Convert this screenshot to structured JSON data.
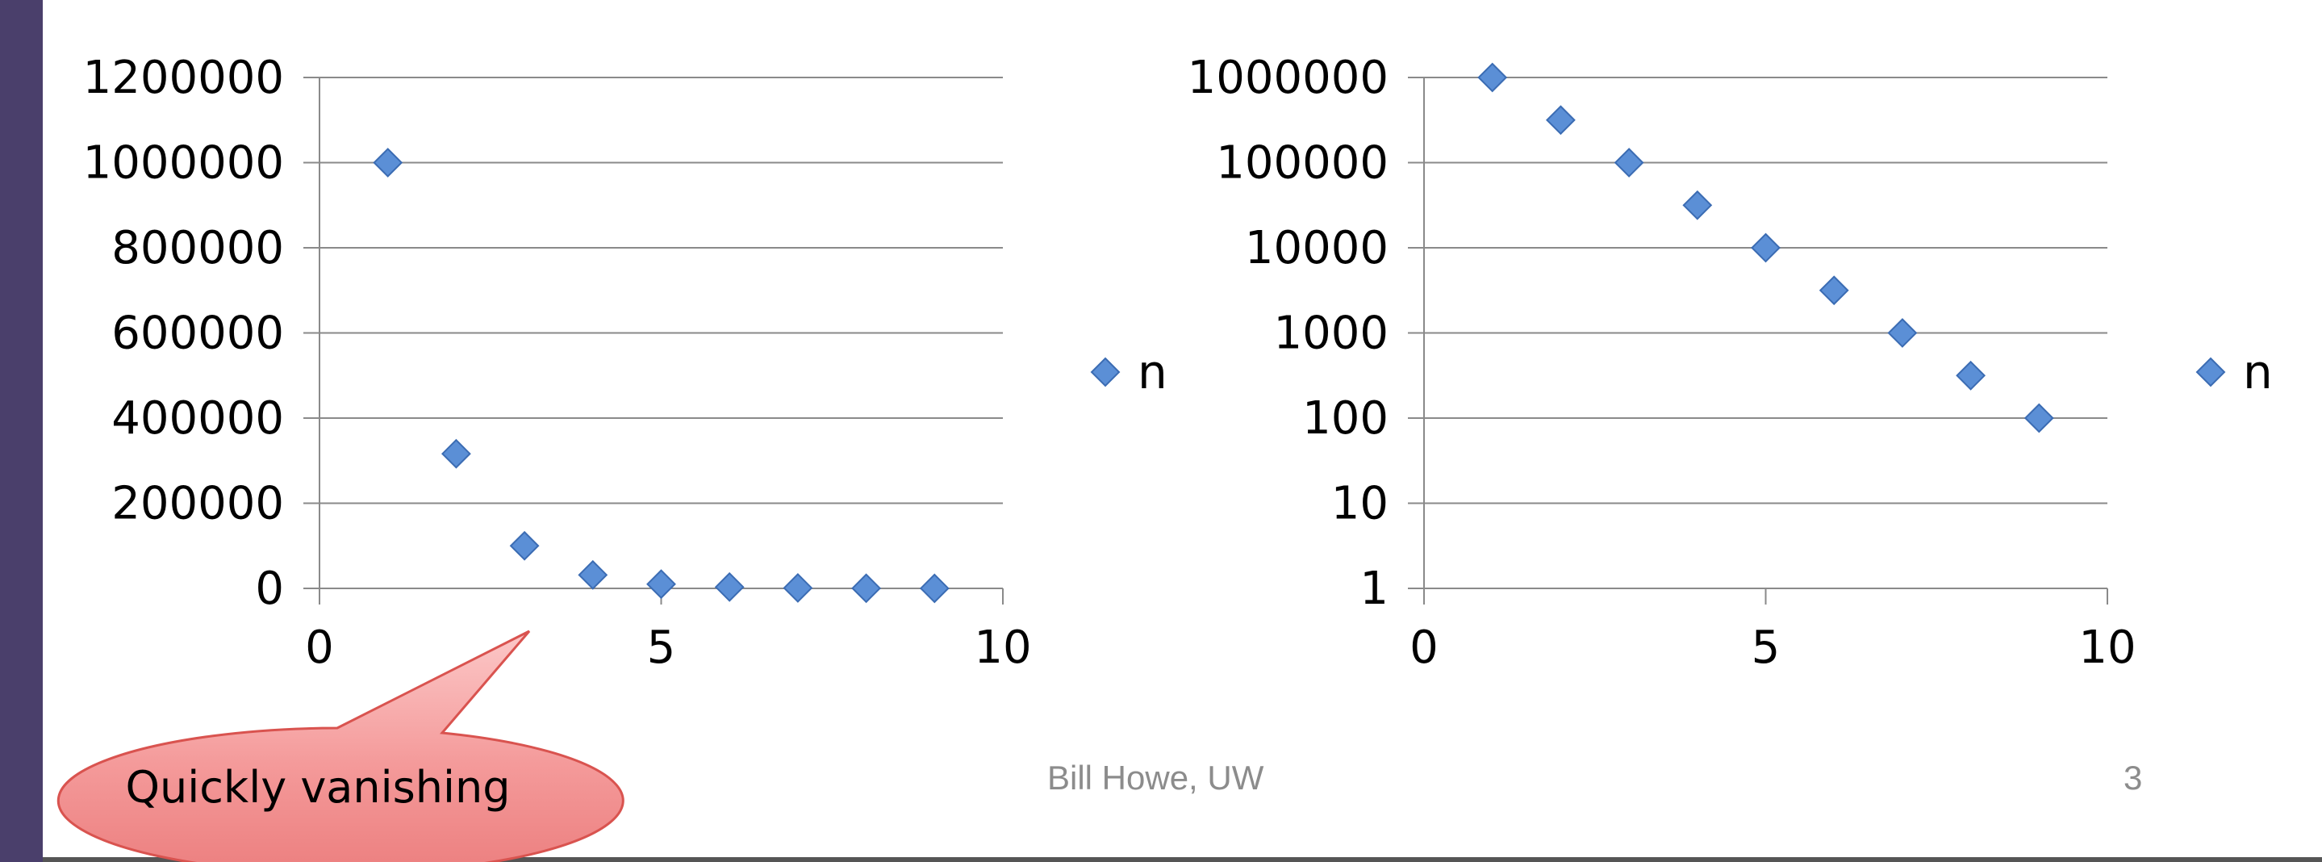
{
  "chart_data": [
    {
      "type": "scatter",
      "title": "",
      "xlabel": "",
      "ylabel": "",
      "xlim": [
        0,
        10
      ],
      "ylim": [
        0,
        1200000
      ],
      "yscale": "linear",
      "x_ticks": [
        "0",
        "5",
        "10"
      ],
      "y_ticks": [
        "0",
        "200000",
        "400000",
        "600000",
        "800000",
        "1000000",
        "1200000"
      ],
      "grid": "horizontal",
      "legend": "right",
      "marker": "diamond",
      "color": "#5b8fd6",
      "series": [
        {
          "name": "n",
          "x": [
            1,
            2,
            3,
            4,
            5,
            6,
            7,
            8,
            9
          ],
          "y": [
            1000000,
            316228,
            100000,
            31623,
            10000,
            3162,
            1000,
            316,
            100
          ]
        }
      ]
    },
    {
      "type": "scatter",
      "title": "",
      "xlabel": "",
      "ylabel": "",
      "xlim": [
        0,
        10
      ],
      "ylim": [
        1,
        1000000
      ],
      "yscale": "log",
      "x_ticks": [
        "0",
        "5",
        "10"
      ],
      "y_ticks": [
        "1",
        "10",
        "100",
        "1000",
        "10000",
        "100000",
        "1000000"
      ],
      "grid": "horizontal",
      "legend": "right",
      "marker": "diamond",
      "color": "#5b8fd6",
      "series": [
        {
          "name": "n",
          "x": [
            1,
            2,
            3,
            4,
            5,
            6,
            7,
            8,
            9
          ],
          "y": [
            1000000,
            316228,
            100000,
            31623,
            10000,
            3162,
            1000,
            316,
            100
          ]
        }
      ]
    }
  ],
  "callout": {
    "text": "Quickly vanishing"
  },
  "footer": {
    "author": "Bill Howe, UW",
    "page": "3"
  }
}
